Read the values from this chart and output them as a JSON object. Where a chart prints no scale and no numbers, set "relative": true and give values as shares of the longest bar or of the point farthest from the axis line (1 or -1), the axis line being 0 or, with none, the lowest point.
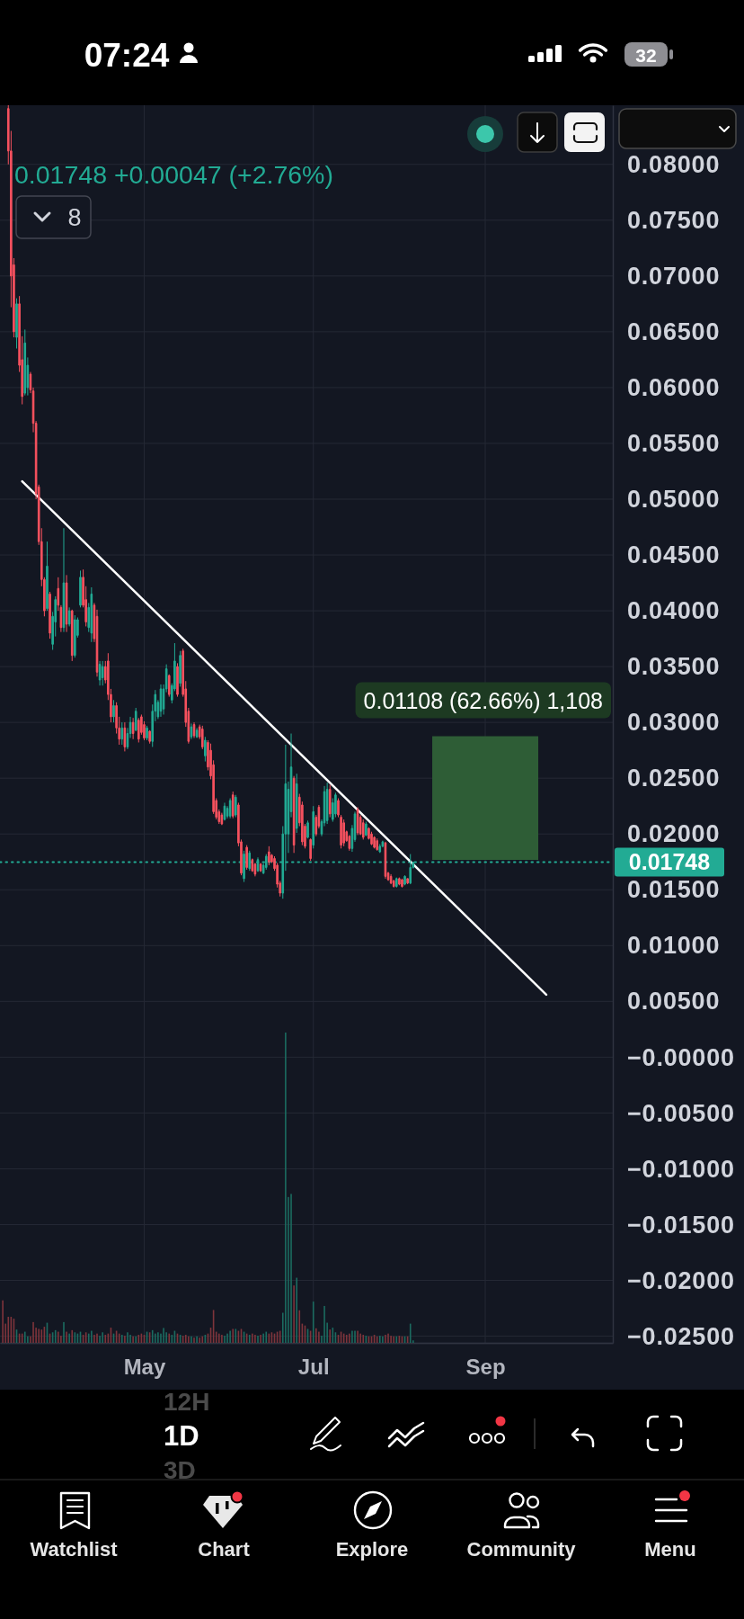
{
  "chart_data": [
    {
      "type": "candlestick",
      "subtitle": "0.01748 +0.00047 (+2.76%)",
      "x": [
        "--03-13",
        "--03-14",
        "--03-15",
        "--03-16",
        "--03-17",
        "--03-18",
        "--03-19",
        "--03-20",
        "--03-21",
        "--03-22",
        "--03-23",
        "--03-24",
        "--03-25",
        "--03-26",
        "--03-27",
        "--03-28",
        "--03-29",
        "--03-30",
        "--03-31",
        "--04-01",
        "--04-02",
        "--04-03",
        "--04-04",
        "--04-05",
        "--04-06",
        "--04-07",
        "--04-08",
        "--04-09",
        "--04-10",
        "--04-11",
        "--04-12",
        "--04-13",
        "--04-14",
        "--04-15",
        "--04-16",
        "--04-17",
        "--04-18",
        "--04-19",
        "--04-20",
        "--04-21",
        "--04-22",
        "--04-23",
        "--04-24",
        "--04-25",
        "--04-26",
        "--04-27",
        "--04-28",
        "--04-29",
        "--04-30",
        "--05-01",
        "--05-02",
        "--05-03",
        "--05-04",
        "--05-05",
        "--05-06",
        "--05-07",
        "--05-08",
        "--05-09",
        "--05-10",
        "--05-11",
        "--05-12",
        "--05-13",
        "--05-14",
        "--05-15",
        "--05-16",
        "--05-17",
        "--05-18",
        "--05-19",
        "--05-20",
        "--05-21",
        "--05-22",
        "--05-23",
        "--05-24",
        "--05-25",
        "--05-26",
        "--05-27",
        "--05-28",
        "--05-29",
        "--05-30",
        "--05-31",
        "--06-01",
        "--06-02",
        "--06-03",
        "--06-04",
        "--06-05",
        "--06-06",
        "--06-07",
        "--06-08",
        "--06-09",
        "--06-10",
        "--06-11",
        "--06-12",
        "--06-13",
        "--06-14",
        "--06-15",
        "--06-16",
        "--06-17",
        "--06-18",
        "--06-19",
        "--06-20",
        "--06-21",
        "--06-22",
        "--06-23",
        "--06-24",
        "--06-25",
        "--06-26",
        "--06-27",
        "--06-28",
        "--06-29",
        "--06-30",
        "--07-01",
        "--07-02",
        "--07-03",
        "--07-04",
        "--07-05",
        "--07-06",
        "--07-07",
        "--07-08",
        "--07-09",
        "--07-10",
        "--07-11",
        "--07-12",
        "--07-13",
        "--07-14",
        "--07-15",
        "--07-16",
        "--07-17",
        "--07-18",
        "--07-19",
        "--07-20",
        "--07-21",
        "--07-22",
        "--07-23",
        "--07-24",
        "--07-25",
        "--07-26",
        "--07-27",
        "--07-28",
        "--07-29",
        "--07-30",
        "--07-31",
        "--08-01",
        "--08-02",
        "--08-03",
        "--08-04",
        "--08-05",
        "--08-06"
      ],
      "ohlc": [
        [
          0.085,
          0.0853,
          0.08,
          0.0812
        ],
        [
          0.0812,
          0.083,
          0.0672,
          0.07
        ],
        [
          0.071,
          0.0716,
          0.0645,
          0.065
        ],
        [
          0.0645,
          0.068,
          0.0635,
          0.0675
        ],
        [
          0.0675,
          0.0682,
          0.0614,
          0.062
        ],
        [
          0.0625,
          0.0646,
          0.0585,
          0.0592
        ],
        [
          0.0595,
          0.0652,
          0.0593,
          0.064
        ],
        [
          0.06,
          0.0627,
          0.0593,
          0.062
        ],
        [
          0.0612,
          0.0614,
          0.0595,
          0.0598
        ],
        [
          0.0597,
          0.06,
          0.056,
          0.0568
        ],
        [
          0.0568,
          0.057,
          0.05,
          0.0505
        ],
        [
          0.0511,
          0.0513,
          0.0459,
          0.0462
        ],
        [
          0.0462,
          0.0474,
          0.0422,
          0.0428
        ],
        [
          0.0428,
          0.043,
          0.0395,
          0.04
        ],
        [
          0.0402,
          0.0462,
          0.04,
          0.044
        ],
        [
          0.0415,
          0.0417,
          0.0375,
          0.038
        ],
        [
          0.037,
          0.0399,
          0.0365,
          0.0395
        ],
        [
          0.039,
          0.0413,
          0.0377,
          0.041
        ],
        [
          0.042,
          0.043,
          0.04,
          0.0405
        ],
        [
          0.0403,
          0.0405,
          0.0381,
          0.0385
        ],
        [
          0.0385,
          0.0474,
          0.0381,
          0.0425
        ],
        [
          0.0425,
          0.0432,
          0.0381,
          0.0388
        ],
        [
          0.0388,
          0.0403,
          0.0386,
          0.04
        ],
        [
          0.04,
          0.0401,
          0.0355,
          0.036
        ],
        [
          0.036,
          0.0396,
          0.0358,
          0.0392
        ],
        [
          0.0378,
          0.0394,
          0.0376,
          0.0392
        ],
        [
          0.0405,
          0.0436,
          0.0403,
          0.043
        ],
        [
          0.043,
          0.0437,
          0.0403,
          0.0405
        ],
        [
          0.041,
          0.0422,
          0.0386,
          0.039
        ],
        [
          0.0385,
          0.0407,
          0.0381,
          0.0403
        ],
        [
          0.038,
          0.0421,
          0.0372,
          0.0415
        ],
        [
          0.0405,
          0.0407,
          0.0372,
          0.0375
        ],
        [
          0.0395,
          0.0401,
          0.0341,
          0.0345
        ],
        [
          0.0338,
          0.0355,
          0.0333,
          0.0352
        ],
        [
          0.034,
          0.0355,
          0.0333,
          0.035
        ],
        [
          0.035,
          0.0355,
          0.0335,
          0.0338
        ],
        [
          0.0355,
          0.0362,
          0.032,
          0.0325
        ],
        [
          0.0325,
          0.033,
          0.03,
          0.0305
        ],
        [
          0.0305,
          0.032,
          0.03,
          0.0315
        ],
        [
          0.0315,
          0.0318,
          0.029,
          0.0295
        ],
        [
          0.0295,
          0.0305,
          0.028,
          0.0285
        ],
        [
          0.0285,
          0.03,
          0.028,
          0.0295
        ],
        [
          0.0295,
          0.03,
          0.0274,
          0.0278
        ],
        [
          0.0278,
          0.0295,
          0.0276,
          0.029
        ],
        [
          0.029,
          0.0305,
          0.0286,
          0.03
        ],
        [
          0.03,
          0.0304,
          0.0285,
          0.029
        ],
        [
          0.0293,
          0.0313,
          0.0292,
          0.031
        ],
        [
          0.0302,
          0.0304,
          0.0282,
          0.0285
        ],
        [
          0.0305,
          0.0307,
          0.0289,
          0.0291
        ],
        [
          0.0298,
          0.0301,
          0.0284,
          0.0286
        ],
        [
          0.0286,
          0.0297,
          0.0284,
          0.0295
        ],
        [
          0.0292,
          0.0293,
          0.0281,
          0.0283
        ],
        [
          0.0283,
          0.0316,
          0.0278,
          0.031
        ],
        [
          0.031,
          0.0329,
          0.0301,
          0.0325
        ],
        [
          0.0305,
          0.032,
          0.0303,
          0.0318
        ],
        [
          0.031,
          0.0334,
          0.0305,
          0.033
        ],
        [
          0.0312,
          0.0334,
          0.0307,
          0.033
        ],
        [
          0.033,
          0.0352,
          0.0327,
          0.0348
        ],
        [
          0.0342,
          0.0343,
          0.0323,
          0.0325
        ],
        [
          0.032,
          0.0335,
          0.0317,
          0.0333
        ],
        [
          0.033,
          0.0371,
          0.0328,
          0.0355
        ],
        [
          0.035,
          0.0353,
          0.0323,
          0.0325
        ],
        [
          0.0335,
          0.0364,
          0.0332,
          0.036
        ],
        [
          0.0364,
          0.0366,
          0.0323,
          0.0325
        ],
        [
          0.033,
          0.0337,
          0.0296,
          0.03
        ],
        [
          0.031,
          0.0313,
          0.0281,
          0.0283
        ],
        [
          0.0287,
          0.0299,
          0.0285,
          0.0296
        ],
        [
          0.0298,
          0.03,
          0.0286,
          0.0288
        ],
        [
          0.0287,
          0.0295,
          0.0286,
          0.0293
        ],
        [
          0.0296,
          0.0298,
          0.0285,
          0.0287
        ],
        [
          0.0294,
          0.0297,
          0.0276,
          0.0278
        ],
        [
          0.027,
          0.0287,
          0.0265,
          0.0284
        ],
        [
          0.0282,
          0.0284,
          0.0257,
          0.026
        ],
        [
          0.0275,
          0.0281,
          0.0249,
          0.0252
        ],
        [
          0.0262,
          0.0266,
          0.0218,
          0.022
        ],
        [
          0.023,
          0.0232,
          0.0213,
          0.0215
        ],
        [
          0.022,
          0.0222,
          0.0209,
          0.0211
        ],
        [
          0.0217,
          0.0219,
          0.0208,
          0.0209
        ],
        [
          0.0213,
          0.0228,
          0.0212,
          0.0225
        ],
        [
          0.0216,
          0.0225,
          0.0214,
          0.0223
        ],
        [
          0.0216,
          0.0232,
          0.0214,
          0.023
        ],
        [
          0.0235,
          0.0238,
          0.0214,
          0.0216
        ],
        [
          0.0217,
          0.0235,
          0.0215,
          0.0233
        ],
        [
          0.0226,
          0.0228,
          0.0189,
          0.0192
        ],
        [
          0.0193,
          0.0195,
          0.0163,
          0.0165
        ],
        [
          0.016,
          0.0185,
          0.0157,
          0.0182
        ],
        [
          0.0188,
          0.019,
          0.0168,
          0.017
        ],
        [
          0.0169,
          0.0185,
          0.0167,
          0.0183
        ],
        [
          0.0177,
          0.0178,
          0.0166,
          0.0167
        ],
        [
          0.0173,
          0.0174,
          0.0162,
          0.0164
        ],
        [
          0.0167,
          0.0179,
          0.0166,
          0.0177
        ],
        [
          0.0173,
          0.0174,
          0.0166,
          0.0167
        ],
        [
          0.0165,
          0.0174,
          0.0164,
          0.0172
        ],
        [
          0.017,
          0.0182,
          0.0168,
          0.018
        ],
        [
          0.0184,
          0.0189,
          0.0172,
          0.0175
        ],
        [
          0.0181,
          0.0182,
          0.0174,
          0.0175
        ],
        [
          0.0178,
          0.018,
          0.0167,
          0.0169
        ],
        [
          0.0172,
          0.0174,
          0.0152,
          0.0155
        ],
        [
          0.0156,
          0.0158,
          0.0144,
          0.0147
        ],
        [
          0.0147,
          0.0207,
          0.0142,
          0.02
        ],
        [
          0.02,
          0.028,
          0.0167,
          0.0245
        ],
        [
          0.02,
          0.0247,
          0.0183,
          0.024
        ],
        [
          0.022,
          0.029,
          0.0215,
          0.026
        ],
        [
          0.025,
          0.0252,
          0.0183,
          0.019
        ],
        [
          0.0205,
          0.0254,
          0.0201,
          0.0245
        ],
        [
          0.0233,
          0.0236,
          0.0207,
          0.021
        ],
        [
          0.0226,
          0.0229,
          0.019,
          0.0193
        ],
        [
          0.0207,
          0.0209,
          0.0187,
          0.0189
        ],
        [
          0.0197,
          0.0212,
          0.0196,
          0.021
        ],
        [
          0.0195,
          0.0196,
          0.0176,
          0.0178
        ],
        [
          0.019,
          0.0225,
          0.0187,
          0.022
        ],
        [
          0.0215,
          0.0217,
          0.0198,
          0.02
        ],
        [
          0.0224,
          0.0226,
          0.0205,
          0.0207
        ],
        [
          0.02,
          0.0213,
          0.0198,
          0.0211
        ],
        [
          0.021,
          0.0243,
          0.0207,
          0.0238
        ],
        [
          0.0212,
          0.0246,
          0.0209,
          0.024
        ],
        [
          0.024,
          0.0244,
          0.0215,
          0.0218
        ],
        [
          0.0213,
          0.0232,
          0.0211,
          0.0228
        ],
        [
          0.0218,
          0.0237,
          0.0215,
          0.0235
        ],
        [
          0.023,
          0.0232,
          0.0215,
          0.0217
        ],
        [
          0.0215,
          0.0217,
          0.0187,
          0.019
        ],
        [
          0.021,
          0.0213,
          0.0189,
          0.0192
        ],
        [
          0.0202,
          0.0203,
          0.0193,
          0.0194
        ],
        [
          0.0198,
          0.0199,
          0.0185,
          0.0187
        ],
        [
          0.0187,
          0.0208,
          0.0184,
          0.0205
        ],
        [
          0.0195,
          0.022,
          0.0193,
          0.0218
        ],
        [
          0.0222,
          0.0224,
          0.0199,
          0.0201
        ],
        [
          0.0215,
          0.0217,
          0.0199,
          0.02
        ],
        [
          0.021,
          0.0213,
          0.0195,
          0.0197
        ],
        [
          0.0199,
          0.0211,
          0.0198,
          0.0209
        ],
        [
          0.0205,
          0.0206,
          0.0195,
          0.0196
        ],
        [
          0.02,
          0.0202,
          0.019,
          0.0191
        ],
        [
          0.0197,
          0.0198,
          0.0187,
          0.0188
        ],
        [
          0.0194,
          0.0196,
          0.0185,
          0.0186
        ],
        [
          0.0184,
          0.0191,
          0.0183,
          0.0189
        ],
        [
          0.0189,
          0.0194,
          0.0188,
          0.0193
        ],
        [
          0.0192,
          0.0193,
          0.016,
          0.0162
        ],
        [
          0.0165,
          0.0166,
          0.0158,
          0.0159
        ],
        [
          0.0162,
          0.0164,
          0.0155,
          0.0156
        ],
        [
          0.0158,
          0.0159,
          0.0152,
          0.0153
        ],
        [
          0.0153,
          0.0161,
          0.0152,
          0.016
        ],
        [
          0.016,
          0.0161,
          0.0154,
          0.0155
        ],
        [
          0.0159,
          0.016,
          0.0152,
          0.0153
        ],
        [
          0.0155,
          0.0163,
          0.0154,
          0.0162
        ],
        [
          0.016,
          0.016,
          0.0155,
          0.0156
        ],
        [
          0.0156,
          0.0182,
          0.0155,
          0.017
        ],
        [
          0.017,
          0.0175,
          0.0169,
          0.01748
        ]
      ],
      "colors": [
        "#f7525f",
        "#f7525f",
        "#f7525f",
        "#22ab94",
        "#f7525f",
        "#f7525f",
        "#22ab94",
        "#22ab94",
        "#f7525f",
        "#f7525f",
        "#f7525f",
        "#f7525f",
        "#f7525f",
        "#f7525f",
        "#22ab94",
        "#f7525f",
        "#22ab94",
        "#22ab94",
        "#f7525f",
        "#f7525f",
        "#22ab94",
        "#f7525f",
        "#22ab94",
        "#f7525f",
        "#22ab94",
        "#22ab94",
        "#22ab94",
        "#f7525f",
        "#f7525f",
        "#22ab94",
        "#22ab94",
        "#f7525f",
        "#f7525f",
        "#22ab94",
        "#22ab94",
        "#f7525f",
        "#f7525f",
        "#f7525f",
        "#22ab94",
        "#f7525f",
        "#f7525f",
        "#22ab94",
        "#f7525f",
        "#22ab94",
        "#22ab94",
        "#f7525f",
        "#22ab94",
        "#f7525f",
        "#f7525f",
        "#f7525f",
        "#22ab94",
        "#f7525f",
        "#22ab94",
        "#22ab94",
        "#22ab94",
        "#22ab94",
        "#22ab94",
        "#22ab94",
        "#f7525f",
        "#22ab94",
        "#22ab94",
        "#f7525f",
        "#22ab94",
        "#f7525f",
        "#f7525f",
        "#f7525f",
        "#22ab94",
        "#f7525f",
        "#22ab94",
        "#f7525f",
        "#f7525f",
        "#22ab94",
        "#f7525f",
        "#f7525f",
        "#f7525f",
        "#f7525f",
        "#f7525f",
        "#f7525f",
        "#22ab94",
        "#22ab94",
        "#22ab94",
        "#f7525f",
        "#22ab94",
        "#f7525f",
        "#f7525f",
        "#22ab94",
        "#f7525f",
        "#22ab94",
        "#f7525f",
        "#f7525f",
        "#22ab94",
        "#f7525f",
        "#22ab94",
        "#22ab94",
        "#f7525f",
        "#f7525f",
        "#f7525f",
        "#f7525f",
        "#f7525f",
        "#22ab94",
        "#22ab94",
        "#22ab94",
        "#22ab94",
        "#f7525f",
        "#22ab94",
        "#f7525f",
        "#f7525f",
        "#f7525f",
        "#22ab94",
        "#f7525f",
        "#22ab94",
        "#f7525f",
        "#f7525f",
        "#22ab94",
        "#22ab94",
        "#22ab94",
        "#f7525f",
        "#22ab94",
        "#22ab94",
        "#f7525f",
        "#f7525f",
        "#f7525f",
        "#f7525f",
        "#f7525f",
        "#22ab94",
        "#22ab94",
        "#f7525f",
        "#f7525f",
        "#f7525f",
        "#22ab94",
        "#f7525f",
        "#f7525f",
        "#f7525f",
        "#f7525f",
        "#22ab94",
        "#22ab94",
        "#f7525f",
        "#f7525f",
        "#f7525f",
        "#f7525f",
        "#22ab94",
        "#f7525f",
        "#f7525f",
        "#22ab94",
        "#f7525f",
        "#22ab94",
        "#22ab94"
      ],
      "xlim": [
        "--03-10",
        "--10-17"
      ],
      "xticks": [
        {
          "value": "--05-01",
          "label": "May"
        },
        {
          "value": "--07-01",
          "label": "Jul"
        },
        {
          "value": "--09-01",
          "label": "Sep"
        }
      ],
      "ylim": [
        -0.0256,
        0.0853
      ],
      "yticks": [
        {
          "value": 0.08,
          "label": "0.08000"
        },
        {
          "value": 0.075,
          "label": "0.07500"
        },
        {
          "value": 0.07,
          "label": "0.07000"
        },
        {
          "value": 0.065,
          "label": "0.06500"
        },
        {
          "value": 0.06,
          "label": "0.06000"
        },
        {
          "value": 0.055,
          "label": "0.05500"
        },
        {
          "value": 0.05,
          "label": "0.05000"
        },
        {
          "value": 0.045,
          "label": "0.04500"
        },
        {
          "value": 0.04,
          "label": "0.04000"
        },
        {
          "value": 0.035,
          "label": "0.03500"
        },
        {
          "value": 0.03,
          "label": "0.03000"
        },
        {
          "value": 0.025,
          "label": "0.02500"
        },
        {
          "value": 0.02,
          "label": "0.02000"
        },
        {
          "value": 0.015,
          "label": "0.01500"
        },
        {
          "value": 0.01,
          "label": "0.01000"
        },
        {
          "value": 0.005,
          "label": "0.00500"
        },
        {
          "value": 0,
          "label": "−0.00000"
        },
        {
          "value": -0.005,
          "label": "−0.00500"
        },
        {
          "value": -0.01,
          "label": "−0.01000"
        },
        {
          "value": -0.015,
          "label": "−0.01500"
        },
        {
          "value": -0.02,
          "label": "−0.02000"
        },
        {
          "value": -0.025,
          "label": "−0.02500"
        }
      ],
      "grid": true,
      "ref_lines": [
        {
          "axis": "y",
          "value": 0.01748,
          "label": "0.01748",
          "color": "#22ab94",
          "line_style": "dotted"
        }
      ],
      "series": [
        {
          "type": "line",
          "x": [
            "--03-18",
            "--09-23"
          ],
          "values": [
            0.0516,
            0.0056
          ],
          "color": "#ffffff"
        },
        {
          "type": "bar",
          "x": [
            "--09-01"
          ],
          "base": [
            0.01768
          ],
          "values": [
            0.01108
          ],
          "color": "#2e5d36",
          "value_labels": [
            "0.01108 (62.66%) 1,108"
          ]
        }
      ],
      "annotations": [
        "8",
        "07:24",
        "32",
        "12H",
        "1D",
        "3D",
        "Watchlist",
        "Chart",
        "Explore",
        "Community",
        "Menu"
      ]
    },
    {
      "type": "bar",
      "relative": true,
      "tick_labels": false,
      "xlim": [
        "--03-10",
        "--10-17"
      ],
      "x": [
        "--03-11",
        "--03-12",
        "--03-13",
        "--03-14",
        "--03-15",
        "--03-16",
        "--03-17",
        "--03-18",
        "--03-19",
        "--03-20",
        "--03-21",
        "--03-22",
        "--03-23",
        "--03-24",
        "--03-25",
        "--03-26",
        "--03-27",
        "--03-28",
        "--03-29",
        "--03-30",
        "--03-31",
        "--04-01",
        "--04-02",
        "--04-03",
        "--04-04",
        "--04-05",
        "--04-06",
        "--04-07",
        "--04-08",
        "--04-09",
        "--04-10",
        "--04-11",
        "--04-12",
        "--04-13",
        "--04-14",
        "--04-15",
        "--04-16",
        "--04-17",
        "--04-18",
        "--04-19",
        "--04-20",
        "--04-21",
        "--04-22",
        "--04-23",
        "--04-24",
        "--04-25",
        "--04-26",
        "--04-27",
        "--04-28",
        "--04-29",
        "--04-30",
        "--05-01",
        "--05-02",
        "--05-03",
        "--05-04",
        "--05-05",
        "--05-06",
        "--05-07",
        "--05-08",
        "--05-09",
        "--05-10",
        "--05-11",
        "--05-12",
        "--05-13",
        "--05-14",
        "--05-15",
        "--05-16",
        "--05-17",
        "--05-18",
        "--05-19",
        "--05-20",
        "--05-21",
        "--05-22",
        "--05-23",
        "--05-24",
        "--05-25",
        "--05-26",
        "--05-27",
        "--05-28",
        "--05-29",
        "--05-30",
        "--05-31",
        "--06-01",
        "--06-02",
        "--06-03",
        "--06-04",
        "--06-05",
        "--06-06",
        "--06-07",
        "--06-08",
        "--06-09",
        "--06-10",
        "--06-11",
        "--06-12",
        "--06-13",
        "--06-14",
        "--06-15",
        "--06-16",
        "--06-17",
        "--06-18",
        "--06-19",
        "--06-20",
        "--06-21",
        "--06-22",
        "--06-23",
        "--06-24",
        "--06-25",
        "--06-26",
        "--06-27",
        "--06-28",
        "--06-29",
        "--06-30",
        "--07-01",
        "--07-02",
        "--07-03",
        "--07-04",
        "--07-05",
        "--07-06",
        "--07-07",
        "--07-08",
        "--07-09",
        "--07-10",
        "--07-11",
        "--07-12",
        "--07-13",
        "--07-14",
        "--07-15",
        "--07-16",
        "--07-17",
        "--07-18",
        "--07-19",
        "--07-20",
        "--07-21",
        "--07-22",
        "--07-23",
        "--07-24",
        "--07-25",
        "--07-26",
        "--07-27",
        "--07-28",
        "--07-29",
        "--07-30",
        "--07-31",
        "--08-01",
        "--08-02",
        "--08-03",
        "--08-04",
        "--08-05",
        "--08-06"
      ],
      "values": [
        0.137,
        0.062,
        0.084,
        0.084,
        0.078,
        0.043,
        0.03,
        0.03,
        0.036,
        0.021,
        0.021,
        0.067,
        0.049,
        0.045,
        0.043,
        0.052,
        0.065,
        0.03,
        0.034,
        0.041,
        0.036,
        0.023,
        0.067,
        0.036,
        0.03,
        0.041,
        0.034,
        0.03,
        0.036,
        0.026,
        0.034,
        0.03,
        0.039,
        0.026,
        0.03,
        0.023,
        0.034,
        0.026,
        0.03,
        0.049,
        0.03,
        0.039,
        0.03,
        0.026,
        0.023,
        0.034,
        0.026,
        0.021,
        0.021,
        0.026,
        0.03,
        0.026,
        0.036,
        0.034,
        0.041,
        0.03,
        0.034,
        0.03,
        0.048,
        0.034,
        0.03,
        0.026,
        0.039,
        0.03,
        0.026,
        0.023,
        0.026,
        0.021,
        0.021,
        0.017,
        0.021,
        0.017,
        0.021,
        0.026,
        0.03,
        0.049,
        0.106,
        0.036,
        0.03,
        0.026,
        0.023,
        0.03,
        0.039,
        0.045,
        0.045,
        0.039,
        0.045,
        0.036,
        0.03,
        0.026,
        0.03,
        0.026,
        0.023,
        0.026,
        0.03,
        0.036,
        0.03,
        0.034,
        0.03,
        0.036,
        0.039,
        0.097,
        1,
        0.47,
        0.48,
        0.185,
        0.21,
        0.105,
        0.062,
        0.056,
        0.045,
        0.039,
        0.133,
        0.047,
        0.036,
        0.023,
        0.119,
        0.065,
        0.043,
        0.049,
        0.034,
        0.026,
        0.036,
        0.03,
        0.026,
        0.03,
        0.039,
        0.039,
        0.039,
        0.03,
        0.026,
        0.023,
        0.021,
        0.021,
        0.026,
        0.021,
        0.023,
        0.021,
        0.026,
        0.03,
        0.023,
        0.021,
        0.021,
        0.023,
        0.021,
        0.021,
        0.021,
        0.062,
        0.008
      ],
      "colors": [
        "#7e343b",
        "#7e343b",
        "#7e343b",
        "#7e343b",
        "#7e343b",
        "#1b6b60",
        "#7e343b",
        "#7e343b",
        "#1b6b60",
        "#1b6b60",
        "#7e343b",
        "#7e343b",
        "#7e343b",
        "#7e343b",
        "#7e343b",
        "#7e343b",
        "#1b6b60",
        "#7e343b",
        "#1b6b60",
        "#1b6b60",
        "#7e343b",
        "#7e343b",
        "#1b6b60",
        "#7e343b",
        "#1b6b60",
        "#7e343b",
        "#1b6b60",
        "#1b6b60",
        "#1b6b60",
        "#7e343b",
        "#7e343b",
        "#1b6b60",
        "#1b6b60",
        "#7e343b",
        "#7e343b",
        "#1b6b60",
        "#1b6b60",
        "#7e343b",
        "#7e343b",
        "#7e343b",
        "#1b6b60",
        "#7e343b",
        "#7e343b",
        "#1b6b60",
        "#7e343b",
        "#1b6b60",
        "#1b6b60",
        "#7e343b",
        "#1b6b60",
        "#7e343b",
        "#7e343b",
        "#7e343b",
        "#1b6b60",
        "#7e343b",
        "#1b6b60",
        "#1b6b60",
        "#1b6b60",
        "#1b6b60",
        "#1b6b60",
        "#1b6b60",
        "#7e343b",
        "#1b6b60",
        "#1b6b60",
        "#7e343b",
        "#1b6b60",
        "#7e343b",
        "#7e343b",
        "#7e343b",
        "#1b6b60",
        "#7e343b",
        "#1b6b60",
        "#7e343b",
        "#7e343b",
        "#1b6b60",
        "#7e343b",
        "#7e343b",
        "#7e343b",
        "#7e343b",
        "#7e343b",
        "#7e343b",
        "#1b6b60",
        "#1b6b60",
        "#1b6b60",
        "#7e343b",
        "#1b6b60",
        "#7e343b",
        "#7e343b",
        "#1b6b60",
        "#7e343b",
        "#1b6b60",
        "#7e343b",
        "#7e343b",
        "#1b6b60",
        "#7e343b",
        "#1b6b60",
        "#1b6b60",
        "#7e343b",
        "#7e343b",
        "#7e343b",
        "#7e343b",
        "#7e343b",
        "#1b6b60",
        "#1b6b60",
        "#1b6b60",
        "#1b6b60",
        "#7e343b",
        "#1b6b60",
        "#7e343b",
        "#7e343b",
        "#7e343b",
        "#1b6b60",
        "#7e343b",
        "#1b6b60",
        "#7e343b",
        "#7e343b",
        "#1b6b60",
        "#1b6b60",
        "#1b6b60",
        "#7e343b",
        "#1b6b60",
        "#1b6b60",
        "#7e343b",
        "#7e343b",
        "#7e343b",
        "#7e343b",
        "#7e343b",
        "#1b6b60",
        "#1b6b60",
        "#7e343b",
        "#7e343b",
        "#7e343b",
        "#1b6b60",
        "#7e343b",
        "#7e343b",
        "#7e343b",
        "#7e343b",
        "#1b6b60",
        "#1b6b60",
        "#7e343b",
        "#7e343b",
        "#7e343b",
        "#7e343b",
        "#1b6b60",
        "#7e343b",
        "#7e343b",
        "#1b6b60",
        "#7e343b",
        "#1b6b60",
        "#1b6b60"
      ]
    }
  ]
}
